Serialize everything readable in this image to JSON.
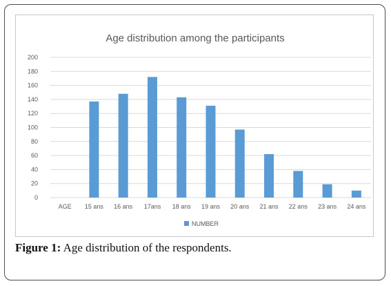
{
  "chart_data": {
    "type": "bar",
    "title": "Age distribution among the participants",
    "categories": [
      "AGE",
      "15 ans",
      "16 ans",
      "17ans",
      "18 ans",
      "19 ans",
      "20 ans",
      "21 ans",
      "22 ans",
      "23 ans",
      "24 ans"
    ],
    "series": [
      {
        "name": "NUMBER",
        "values": [
          null,
          137,
          148,
          172,
          143,
          131,
          97,
          62,
          38,
          19,
          10
        ]
      }
    ],
    "ylim": [
      0,
      200
    ],
    "yticks": [
      "0",
      "20",
      "40",
      "60",
      "80",
      "100",
      "120",
      "140",
      "160",
      "180",
      "200"
    ],
    "grid": true,
    "legend": "bottom",
    "colors": {
      "bar": "#5b9bd5",
      "grid": "#d9d9d9",
      "text": "#595959"
    }
  },
  "caption": {
    "label": "Figure 1:",
    "text": " Age distribution of the respondents."
  }
}
